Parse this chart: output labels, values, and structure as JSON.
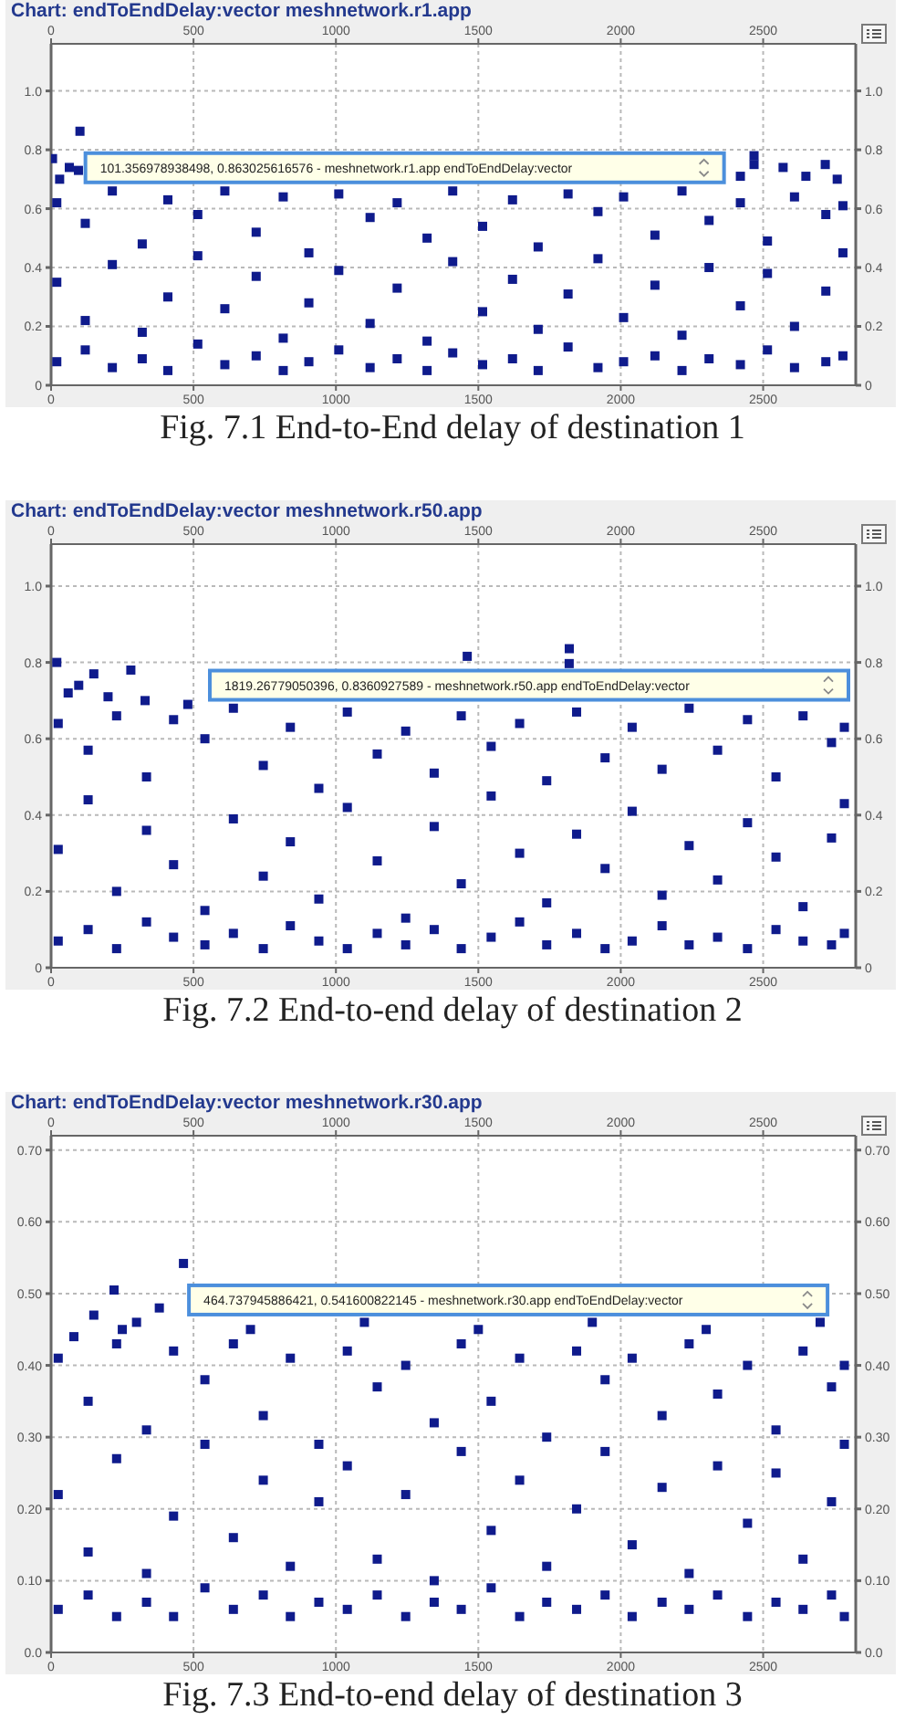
{
  "chart_data": [
    {
      "type": "scatter",
      "title": "Chart: endToEndDelay:vector meshnetwork.r1.app",
      "color": "#0f1b8c",
      "marker": "square",
      "grid": true,
      "x": [
        5,
        30,
        64,
        96,
        101.357,
        2468,
        2468,
        2570,
        2718,
        2650,
        2420,
        2760,
        20,
        20,
        20,
        120,
        120,
        120,
        215,
        215,
        215,
        320,
        320,
        320,
        410,
        410,
        410,
        515,
        515,
        515,
        610,
        610,
        610,
        720,
        720,
        720,
        815,
        815,
        815,
        905,
        905,
        905,
        1010,
        1010,
        1010,
        1120,
        1120,
        1120,
        1215,
        1215,
        1215,
        1320,
        1320,
        1320,
        1410,
        1410,
        1410,
        1515,
        1515,
        1515,
        1620,
        1620,
        1620,
        1710,
        1710,
        1710,
        1815,
        1815,
        1815,
        1920,
        1920,
        1920,
        2010,
        2010,
        2010,
        2120,
        2120,
        2120,
        2215,
        2215,
        2215,
        2310,
        2310,
        2310,
        2420,
        2420,
        2420,
        2515,
        2515,
        2515,
        2610,
        2610,
        2610,
        2720,
        2720,
        2720,
        2780,
        2780,
        2780
      ],
      "values": [
        0.77,
        0.7,
        0.74,
        0.73,
        0.863,
        0.78,
        0.75,
        0.74,
        0.75,
        0.71,
        0.71,
        0.7,
        0.62,
        0.35,
        0.08,
        0.55,
        0.22,
        0.12,
        0.66,
        0.41,
        0.06,
        0.48,
        0.18,
        0.09,
        0.63,
        0.3,
        0.05,
        0.58,
        0.44,
        0.14,
        0.66,
        0.26,
        0.07,
        0.52,
        0.37,
        0.1,
        0.64,
        0.16,
        0.05,
        0.45,
        0.28,
        0.08,
        0.65,
        0.39,
        0.12,
        0.57,
        0.21,
        0.06,
        0.62,
        0.33,
        0.09,
        0.5,
        0.15,
        0.05,
        0.66,
        0.42,
        0.11,
        0.54,
        0.25,
        0.07,
        0.63,
        0.36,
        0.09,
        0.47,
        0.19,
        0.05,
        0.65,
        0.31,
        0.13,
        0.59,
        0.43,
        0.06,
        0.64,
        0.23,
        0.08,
        0.51,
        0.34,
        0.1,
        0.66,
        0.17,
        0.05,
        0.56,
        0.4,
        0.09,
        0.62,
        0.27,
        0.07,
        0.49,
        0.38,
        0.12,
        0.64,
        0.2,
        0.06,
        0.58,
        0.32,
        0.08,
        0.61,
        0.45,
        0.1
      ],
      "xlim": [
        0,
        2825
      ],
      "xticks": [
        0,
        500,
        1000,
        1500,
        2000,
        2500
      ],
      "x2lim": [
        0,
        2825
      ],
      "x2ticks": [
        0,
        500,
        1000,
        1500,
        2000,
        2500
      ],
      "ylim": [
        0,
        1.16
      ],
      "yticks": [
        0,
        0.2,
        0.4,
        0.6,
        0.8,
        {
          "value": 1,
          "label": "1.0"
        }
      ],
      "y2lim": [
        0,
        1.16
      ],
      "y2ticks": [
        0,
        0.2,
        0.4,
        0.6,
        0.8,
        {
          "value": 1,
          "label": "1.0"
        }
      ],
      "annotations": [
        {
          "text": "101.356978938498, 0.863025616576 - meshnetwork.r1.app endToEndDelay:vector",
          "x": 101.357,
          "y": 0.863
        },
        "Fig. 7.1 End-to-End delay of destination 1"
      ]
    },
    {
      "type": "scatter",
      "title": "Chart: endToEndDelay:vector meshnetwork.r50.app",
      "color": "#0f1b8c",
      "marker": "square",
      "grid": true,
      "x": [
        20,
        97,
        150,
        280,
        60,
        200,
        330,
        480,
        1461,
        1819.268,
        1819,
        25,
        25,
        25,
        130,
        130,
        130,
        230,
        230,
        230,
        335,
        335,
        335,
        430,
        430,
        430,
        540,
        540,
        540,
        640,
        640,
        640,
        745,
        745,
        745,
        840,
        840,
        840,
        940,
        940,
        940,
        1040,
        1040,
        1040,
        1145,
        1145,
        1145,
        1245,
        1245,
        1245,
        1345,
        1345,
        1345,
        1440,
        1440,
        1440,
        1545,
        1545,
        1545,
        1645,
        1645,
        1645,
        1740,
        1740,
        1740,
        1845,
        1845,
        1845,
        1945,
        1945,
        1945,
        2040,
        2040,
        2040,
        2145,
        2145,
        2145,
        2240,
        2240,
        2240,
        2340,
        2340,
        2340,
        2445,
        2445,
        2445,
        2545,
        2545,
        2545,
        2640,
        2640,
        2640,
        2740,
        2740,
        2740,
        2785,
        2785,
        2785
      ],
      "values": [
        0.8,
        0.74,
        0.77,
        0.78,
        0.72,
        0.71,
        0.7,
        0.69,
        0.816,
        0.836,
        0.797,
        0.64,
        0.31,
        0.07,
        0.57,
        0.44,
        0.1,
        0.66,
        0.2,
        0.05,
        0.5,
        0.36,
        0.12,
        0.65,
        0.27,
        0.08,
        0.6,
        0.15,
        0.06,
        0.68,
        0.39,
        0.09,
        0.53,
        0.24,
        0.05,
        0.63,
        0.33,
        0.11,
        0.47,
        0.18,
        0.07,
        0.67,
        0.42,
        0.05,
        0.56,
        0.28,
        0.09,
        0.62,
        0.13,
        0.06,
        0.51,
        0.37,
        0.1,
        0.66,
        0.22,
        0.05,
        0.58,
        0.45,
        0.08,
        0.64,
        0.3,
        0.12,
        0.49,
        0.17,
        0.06,
        0.67,
        0.35,
        0.09,
        0.55,
        0.26,
        0.05,
        0.63,
        0.41,
        0.07,
        0.52,
        0.19,
        0.11,
        0.68,
        0.32,
        0.06,
        0.57,
        0.23,
        0.08,
        0.65,
        0.38,
        0.05,
        0.5,
        0.29,
        0.1,
        0.66,
        0.16,
        0.07,
        0.59,
        0.34,
        0.06,
        0.63,
        0.43,
        0.09
      ],
      "xlim": [
        0,
        2825
      ],
      "xticks": [
        0,
        500,
        1000,
        1500,
        2000,
        2500
      ],
      "x2lim": [
        0,
        2825
      ],
      "x2ticks": [
        0,
        500,
        1000,
        1500,
        2000,
        2500
      ],
      "ylim": [
        0,
        1.11
      ],
      "yticks": [
        0,
        0.2,
        0.4,
        0.6,
        0.8,
        {
          "value": 1,
          "label": "1.0"
        }
      ],
      "y2lim": [
        0,
        1.11
      ],
      "y2ticks": [
        0,
        0.2,
        0.4,
        0.6,
        0.8,
        {
          "value": 1,
          "label": "1.0"
        }
      ],
      "annotations": [
        {
          "text": "1819.26779050396, 0.8360927589 - meshnetwork.r50.app endToEndDelay:vector",
          "x": 1819.268,
          "y": 0.836
        },
        "Fig. 7.2 End-to-end delay of destination 2"
      ]
    },
    {
      "type": "scatter",
      "title": "Chart: endToEndDelay:vector meshnetwork.r30.app",
      "color": "#0f1b8c",
      "marker": "square",
      "grid": true,
      "x": [
        221,
        464.738,
        150,
        300,
        380,
        250,
        80,
        700,
        1100,
        1500,
        1900,
        2300,
        2700,
        25,
        25,
        25,
        130,
        130,
        130,
        230,
        230,
        230,
        335,
        335,
        335,
        430,
        430,
        430,
        540,
        540,
        540,
        640,
        640,
        640,
        745,
        745,
        745,
        840,
        840,
        840,
        940,
        940,
        940,
        1040,
        1040,
        1040,
        1145,
        1145,
        1145,
        1245,
        1245,
        1245,
        1345,
        1345,
        1345,
        1440,
        1440,
        1440,
        1545,
        1545,
        1545,
        1645,
        1645,
        1645,
        1740,
        1740,
        1740,
        1845,
        1845,
        1845,
        1945,
        1945,
        1945,
        2040,
        2040,
        2040,
        2145,
        2145,
        2145,
        2240,
        2240,
        2240,
        2340,
        2340,
        2340,
        2445,
        2445,
        2445,
        2545,
        2545,
        2545,
        2640,
        2640,
        2640,
        2740,
        2740,
        2740,
        2785,
        2785,
        2785
      ],
      "values": [
        0.505,
        0.542,
        0.47,
        0.46,
        0.48,
        0.45,
        0.44,
        0.45,
        0.46,
        0.45,
        0.46,
        0.45,
        0.46,
        0.41,
        0.22,
        0.06,
        0.35,
        0.14,
        0.08,
        0.43,
        0.27,
        0.05,
        0.31,
        0.11,
        0.07,
        0.42,
        0.19,
        0.05,
        0.38,
        0.29,
        0.09,
        0.43,
        0.16,
        0.06,
        0.33,
        0.24,
        0.08,
        0.41,
        0.12,
        0.05,
        0.29,
        0.21,
        0.07,
        0.42,
        0.26,
        0.06,
        0.37,
        0.13,
        0.08,
        0.4,
        0.22,
        0.05,
        0.32,
        0.1,
        0.07,
        0.43,
        0.28,
        0.06,
        0.35,
        0.17,
        0.09,
        0.41,
        0.24,
        0.05,
        0.3,
        0.12,
        0.07,
        0.42,
        0.2,
        0.06,
        0.38,
        0.28,
        0.08,
        0.41,
        0.15,
        0.05,
        0.33,
        0.23,
        0.07,
        0.43,
        0.11,
        0.06,
        0.36,
        0.26,
        0.08,
        0.4,
        0.18,
        0.05,
        0.31,
        0.25,
        0.07,
        0.42,
        0.13,
        0.06,
        0.37,
        0.21,
        0.08,
        0.4,
        0.29,
        0.05
      ],
      "xlim": [
        0,
        2825
      ],
      "xticks": [
        0,
        500,
        1000,
        1500,
        2000,
        2500
      ],
      "x2lim": [
        0,
        2825
      ],
      "x2ticks": [
        0,
        500,
        1000,
        1500,
        2000,
        2500
      ],
      "ylim": [
        0,
        0.72
      ],
      "yticks": [
        {
          "value": 0,
          "label": "0.0"
        },
        {
          "value": 0.1,
          "label": "0.10"
        },
        {
          "value": 0.2,
          "label": "0.20"
        },
        {
          "value": 0.3,
          "label": "0.30"
        },
        {
          "value": 0.4,
          "label": "0.40"
        },
        {
          "value": 0.5,
          "label": "0.50"
        },
        {
          "value": 0.6,
          "label": "0.60"
        },
        {
          "value": 0.7,
          "label": "0.70"
        }
      ],
      "y2lim": [
        0,
        0.72
      ],
      "y2ticks": [
        {
          "value": 0,
          "label": "0.0"
        },
        {
          "value": 0.1,
          "label": "0.10"
        },
        {
          "value": 0.2,
          "label": "0.20"
        },
        {
          "value": 0.3,
          "label": "0.30"
        },
        {
          "value": 0.4,
          "label": "0.40"
        },
        {
          "value": 0.5,
          "label": "0.50"
        },
        {
          "value": 0.6,
          "label": "0.60"
        },
        {
          "value": 0.7,
          "label": "0.70"
        }
      ],
      "annotations": [
        {
          "text": "464.737945886421, 0.541600822145 - meshnetwork.r30.app endToEndDelay:vector",
          "x": 464.738,
          "y": 0.542
        },
        "Fig. 7.3 End-to-end delay of destination 3"
      ]
    }
  ]
}
